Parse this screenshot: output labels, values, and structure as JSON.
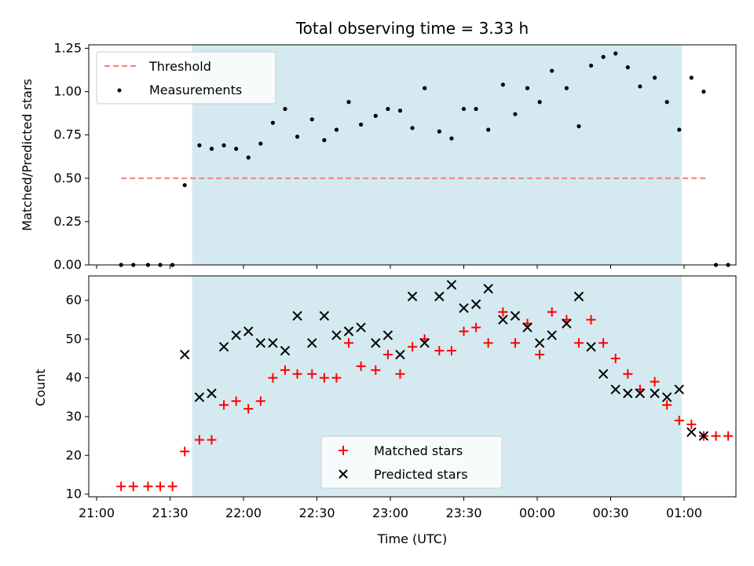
{
  "chart_data": [
    {
      "type": "scatter",
      "title": "Total observing time = 3.33 h",
      "ylabel": "Matched/Predicted stars",
      "xlabel": "",
      "ylim": [
        0,
        1.27
      ],
      "yticks": [
        0.0,
        0.25,
        0.5,
        0.75,
        1.0,
        1.25
      ],
      "ytick_labels": [
        "0.00",
        "0.25",
        "0.50",
        "0.75",
        "1.00",
        "1.25"
      ],
      "xtick_labels_shown": false,
      "observing_window": {
        "start": "21:39",
        "end": "00:59",
        "color": "#d4eaf0"
      },
      "threshold": {
        "name": "Threshold",
        "value": 0.5,
        "x_start": "21:10",
        "x_end": "01:10",
        "color": "#f08080",
        "style": "dashed"
      },
      "series": [
        {
          "name": "Measurements",
          "marker": "dot",
          "color": "#000000",
          "points": [
            [
              "21:10",
              0.0
            ],
            [
              "21:15",
              0.0
            ],
            [
              "21:21",
              0.0
            ],
            [
              "21:26",
              0.0
            ],
            [
              "21:31",
              0.0
            ],
            [
              "21:36",
              0.46
            ],
            [
              "21:42",
              0.69
            ],
            [
              "21:47",
              0.67
            ],
            [
              "21:52",
              0.69
            ],
            [
              "21:57",
              0.67
            ],
            [
              "22:02",
              0.62
            ],
            [
              "22:07",
              0.7
            ],
            [
              "22:12",
              0.82
            ],
            [
              "22:17",
              0.9
            ],
            [
              "22:22",
              0.74
            ],
            [
              "22:28",
              0.84
            ],
            [
              "22:33",
              0.72
            ],
            [
              "22:38",
              0.78
            ],
            [
              "22:43",
              0.94
            ],
            [
              "22:48",
              0.81
            ],
            [
              "22:54",
              0.86
            ],
            [
              "22:59",
              0.9
            ],
            [
              "23:04",
              0.89
            ],
            [
              "23:09",
              0.79
            ],
            [
              "23:14",
              1.02
            ],
            [
              "23:20",
              0.77
            ],
            [
              "23:25",
              0.73
            ],
            [
              "23:30",
              0.9
            ],
            [
              "23:35",
              0.9
            ],
            [
              "23:40",
              0.78
            ],
            [
              "23:46",
              1.04
            ],
            [
              "23:51",
              0.87
            ],
            [
              "23:56",
              1.02
            ],
            [
              "00:01",
              0.94
            ],
            [
              "00:06",
              1.12
            ],
            [
              "00:12",
              1.02
            ],
            [
              "00:17",
              0.8
            ],
            [
              "00:22",
              1.15
            ],
            [
              "00:27",
              1.2
            ],
            [
              "00:32",
              1.22
            ],
            [
              "00:37",
              1.14
            ],
            [
              "00:42",
              1.03
            ],
            [
              "00:48",
              1.08
            ],
            [
              "00:53",
              0.94
            ],
            [
              "00:58",
              0.78
            ],
            [
              "01:03",
              1.08
            ],
            [
              "01:08",
              1.0
            ],
            [
              "01:13",
              0.0
            ],
            [
              "01:18",
              0.0
            ]
          ]
        }
      ],
      "legend": {
        "placement": "top-left",
        "entries": [
          "Threshold",
          "Measurements"
        ]
      }
    },
    {
      "type": "scatter",
      "title": "",
      "ylabel": "Count",
      "xlabel": "Time (UTC)",
      "ylim": [
        9.3,
        66.3
      ],
      "yticks": [
        10,
        20,
        30,
        40,
        50,
        60
      ],
      "xticks": [
        "21:00",
        "21:30",
        "22:00",
        "22:30",
        "23:00",
        "23:30",
        "00:00",
        "00:30",
        "01:00"
      ],
      "observing_window": {
        "start": "21:39",
        "end": "00:59",
        "color": "#d4eaf0"
      },
      "series": [
        {
          "name": "Matched stars",
          "marker": "plus",
          "color": "#ff0000",
          "points": [
            [
              "21:10",
              12
            ],
            [
              "21:15",
              12
            ],
            [
              "21:21",
              12
            ],
            [
              "21:26",
              12
            ],
            [
              "21:31",
              12
            ],
            [
              "21:36",
              21
            ],
            [
              "21:42",
              24
            ],
            [
              "21:47",
              24
            ],
            [
              "21:52",
              33
            ],
            [
              "21:57",
              34
            ],
            [
              "22:02",
              32
            ],
            [
              "22:07",
              34
            ],
            [
              "22:12",
              40
            ],
            [
              "22:17",
              42
            ],
            [
              "22:22",
              41
            ],
            [
              "22:28",
              41
            ],
            [
              "22:33",
              40
            ],
            [
              "22:38",
              40
            ],
            [
              "22:43",
              49
            ],
            [
              "22:48",
              43
            ],
            [
              "22:54",
              42
            ],
            [
              "22:59",
              46
            ],
            [
              "23:04",
              41
            ],
            [
              "23:09",
              48
            ],
            [
              "23:14",
              50
            ],
            [
              "23:20",
              47
            ],
            [
              "23:25",
              47
            ],
            [
              "23:30",
              52
            ],
            [
              "23:35",
              53
            ],
            [
              "23:40",
              49
            ],
            [
              "23:46",
              57
            ],
            [
              "23:51",
              49
            ],
            [
              "23:56",
              54
            ],
            [
              "00:01",
              46
            ],
            [
              "00:06",
              57
            ],
            [
              "00:12",
              55
            ],
            [
              "00:17",
              49
            ],
            [
              "00:22",
              55
            ],
            [
              "00:27",
              49
            ],
            [
              "00:32",
              45
            ],
            [
              "00:37",
              41
            ],
            [
              "00:42",
              37
            ],
            [
              "00:48",
              39
            ],
            [
              "00:53",
              33
            ],
            [
              "00:58",
              29
            ],
            [
              "01:03",
              28
            ],
            [
              "01:08",
              25
            ],
            [
              "01:13",
              25
            ],
            [
              "01:18",
              25
            ]
          ]
        },
        {
          "name": "Predicted stars",
          "marker": "x",
          "color": "#000000",
          "points": [
            [
              "21:36",
              46
            ],
            [
              "21:42",
              35
            ],
            [
              "21:47",
              36
            ],
            [
              "21:52",
              48
            ],
            [
              "21:57",
              51
            ],
            [
              "22:02",
              52
            ],
            [
              "22:07",
              49
            ],
            [
              "22:12",
              49
            ],
            [
              "22:17",
              47
            ],
            [
              "22:22",
              56
            ],
            [
              "22:28",
              49
            ],
            [
              "22:33",
              56
            ],
            [
              "22:38",
              51
            ],
            [
              "22:43",
              52
            ],
            [
              "22:48",
              53
            ],
            [
              "22:54",
              49
            ],
            [
              "22:59",
              51
            ],
            [
              "23:04",
              46
            ],
            [
              "23:09",
              61
            ],
            [
              "23:14",
              49
            ],
            [
              "23:20",
              61
            ],
            [
              "23:25",
              64
            ],
            [
              "23:30",
              58
            ],
            [
              "23:35",
              59
            ],
            [
              "23:40",
              63
            ],
            [
              "23:46",
              55
            ],
            [
              "23:51",
              56
            ],
            [
              "23:56",
              53
            ],
            [
              "00:01",
              49
            ],
            [
              "00:06",
              51
            ],
            [
              "00:12",
              54
            ],
            [
              "00:17",
              61
            ],
            [
              "00:22",
              48
            ],
            [
              "00:27",
              41
            ],
            [
              "00:32",
              37
            ],
            [
              "00:37",
              36
            ],
            [
              "00:42",
              36
            ],
            [
              "00:48",
              36
            ],
            [
              "00:53",
              35
            ],
            [
              "00:58",
              37
            ],
            [
              "01:03",
              26
            ],
            [
              "01:08",
              25
            ]
          ]
        }
      ],
      "legend": {
        "placement": "bottom-center",
        "entries": [
          "Matched stars",
          "Predicted stars"
        ]
      }
    }
  ]
}
